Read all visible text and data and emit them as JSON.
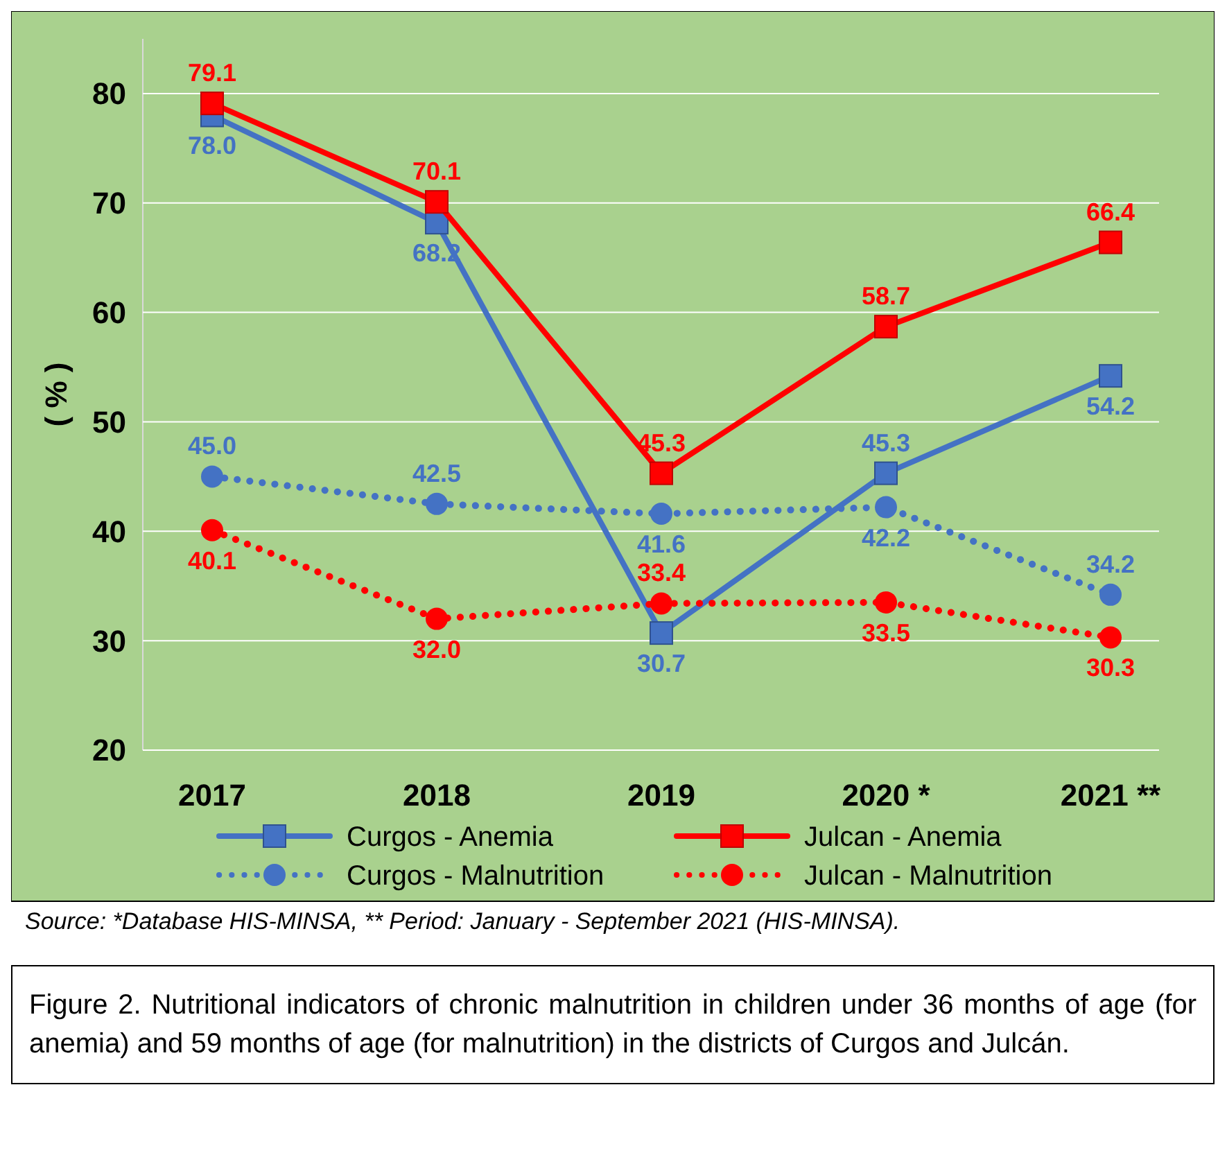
{
  "chart_data": {
    "type": "line",
    "ylabel": "( % )",
    "categories": [
      "2017",
      "2018",
      "2019",
      "2020 *",
      "2021 **"
    ],
    "series": [
      {
        "name": "Curgos - Anemia",
        "color": "#4472c4",
        "values": [
          78.0,
          68.2,
          30.7,
          45.3,
          54.2
        ],
        "marker": "square",
        "line_style": "solid"
      },
      {
        "name": "Julcan - Anemia",
        "color": "#ff0000",
        "values": [
          79.1,
          70.1,
          45.3,
          58.7,
          66.4
        ],
        "marker": "square",
        "line_style": "solid"
      },
      {
        "name": "Curgos - Malnutrition",
        "color": "#4472c4",
        "values": [
          45.0,
          42.5,
          41.6,
          42.2,
          34.2
        ],
        "marker": "circle",
        "line_style": "dotted"
      },
      {
        "name": "Julcan - Malnutrition",
        "color": "#ff0000",
        "values": [
          40.1,
          32.0,
          33.4,
          33.5,
          30.3
        ],
        "marker": "circle",
        "line_style": "dotted"
      }
    ],
    "value_labels": [
      [
        "78.0",
        "68.2",
        "30.7",
        "45.3",
        "54.2"
      ],
      [
        "79.1",
        "70.1",
        "45.3",
        "58.7",
        "66.4"
      ],
      [
        "45.0",
        "42.5",
        "41.6",
        "42.2",
        "34.2"
      ],
      [
        "40.1",
        "32.0",
        "33.4",
        "33.5",
        "30.3"
      ]
    ],
    "ylim": [
      20,
      85
    ],
    "yticks": [
      20,
      30,
      40,
      50,
      60,
      70,
      80
    ],
    "grid": "y",
    "legend": "bottom",
    "annotations": [
      "Source: *Database HIS-MINSA, ** Period: January - September 2021 (HIS-MINSA).",
      "Figure 2. Nutritional indicators of chronic malnutrition in children under 36 months of age (for anemia) and 59 months of age (for malnutrition) in the districts of Curgos and Julcán."
    ]
  }
}
